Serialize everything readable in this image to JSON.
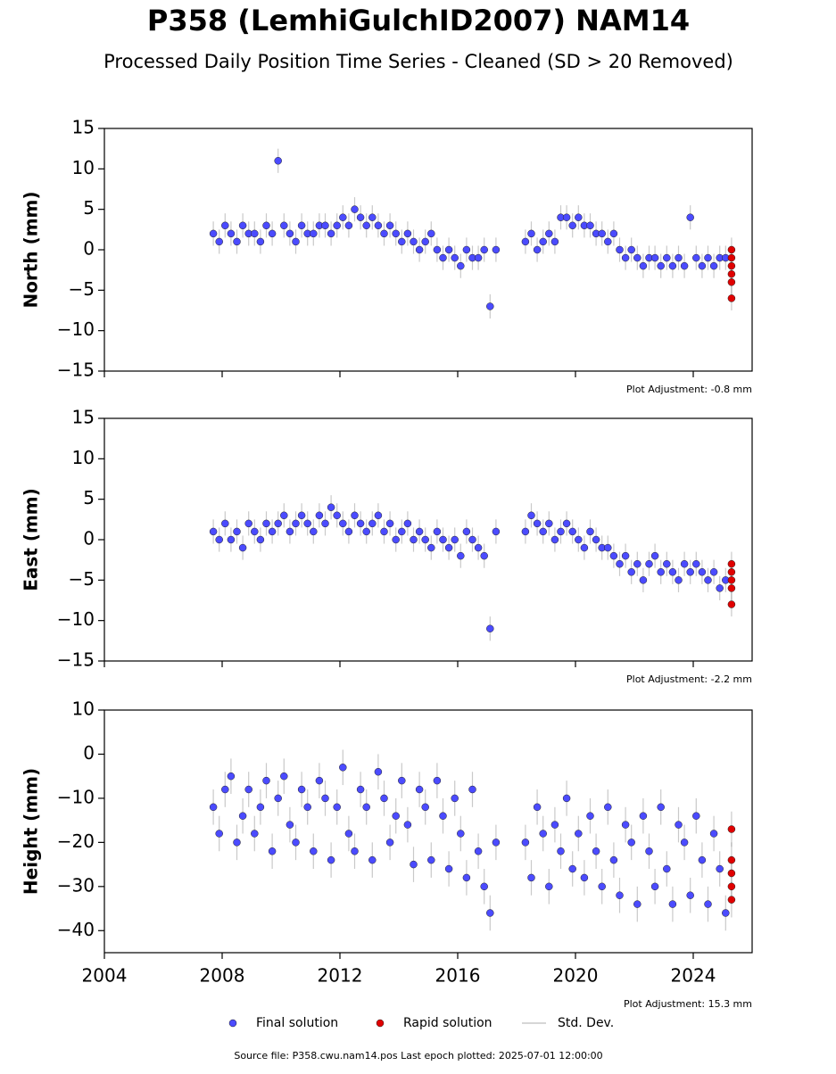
{
  "title": "P358 (LemhiGulchID2007) NAM14",
  "subtitle": "Processed Daily Position Time Series - Cleaned (SD > 20 Removed)",
  "std_dev_label": "Std. Dev.",
  "footer": "Source file: P358.cwu.nam14.pos  Last epoch plotted: 2025-07-01 12:00:00",
  "chart_data": [
    {
      "type": "scatter",
      "ylabel": "North (mm)",
      "annotation": "Plot Adjustment: -0.8 mm",
      "xlim": [
        2004,
        2026
      ],
      "xticks": [
        2004,
        2008,
        2012,
        2016,
        2020,
        2024
      ],
      "show_xtick_labels": false,
      "ylim": [
        -15,
        15
      ],
      "yticks": [
        {
          "value": -15,
          "label": "−15"
        },
        {
          "value": -10,
          "label": "−10"
        },
        {
          "value": -5,
          "label": "−5"
        },
        0,
        5,
        10,
        15
      ],
      "series": [
        {
          "name": "Final solution",
          "color": "#4b4bff",
          "std_dev": 1.5,
          "x": [
            2007.7,
            2007.9,
            2008.1,
            2008.3,
            2008.5,
            2008.7,
            2008.9,
            2009.1,
            2009.3,
            2009.5,
            2009.7,
            2009.9,
            2010.1,
            2010.3,
            2010.5,
            2010.7,
            2010.9,
            2011.1,
            2011.3,
            2011.5,
            2011.7,
            2011.9,
            2012.1,
            2012.3,
            2012.5,
            2012.7,
            2012.9,
            2013.1,
            2013.3,
            2013.5,
            2013.7,
            2013.9,
            2014.1,
            2014.3,
            2014.5,
            2014.7,
            2014.9,
            2015.1,
            2015.3,
            2015.5,
            2015.7,
            2015.9,
            2016.1,
            2016.3,
            2016.5,
            2016.7,
            2016.9,
            2017.1,
            2017.3,
            2018.3,
            2018.5,
            2018.7,
            2018.9,
            2019.1,
            2019.3,
            2019.5,
            2019.7,
            2019.9,
            2020.1,
            2020.3,
            2020.5,
            2020.7,
            2020.9,
            2021.1,
            2021.3,
            2021.5,
            2021.7,
            2021.9,
            2022.1,
            2022.3,
            2022.5,
            2022.7,
            2022.9,
            2023.1,
            2023.3,
            2023.5,
            2023.7,
            2023.9,
            2024.1,
            2024.3,
            2024.5,
            2024.7,
            2024.9,
            2025.1
          ],
          "values": [
            2,
            1,
            3,
            2,
            1,
            3,
            2,
            2,
            1,
            3,
            2,
            11,
            3,
            2,
            1,
            3,
            2,
            2,
            3,
            3,
            2,
            3,
            4,
            3,
            5,
            4,
            3,
            4,
            3,
            2,
            3,
            2,
            1,
            2,
            1,
            0,
            1,
            2,
            0,
            -1,
            0,
            -1,
            -2,
            0,
            -1,
            -1,
            0,
            -7,
            0,
            1,
            2,
            0,
            1,
            2,
            1,
            4,
            4,
            3,
            4,
            3,
            3,
            2,
            2,
            1,
            2,
            0,
            -1,
            0,
            -1,
            -2,
            -1,
            -1,
            -2,
            -1,
            -2,
            -1,
            -2,
            4,
            -1,
            -2,
            -1,
            -2,
            -1,
            -1
          ]
        },
        {
          "name": "Rapid solution",
          "color": "#e00000",
          "std_dev": 1.5,
          "x": [
            2025.3,
            2025.3,
            2025.3,
            2025.3,
            2025.3,
            2025.3
          ],
          "values": [
            0,
            -1,
            -2,
            -3,
            -4,
            -6
          ]
        }
      ]
    },
    {
      "type": "scatter",
      "ylabel": "East (mm)",
      "annotation": "Plot Adjustment: -2.2 mm",
      "xlim": [
        2004,
        2026
      ],
      "xticks": [
        2004,
        2008,
        2012,
        2016,
        2020,
        2024
      ],
      "show_xtick_labels": false,
      "ylim": [
        -15,
        15
      ],
      "yticks": [
        {
          "value": -15,
          "label": "−15"
        },
        {
          "value": -10,
          "label": "−10"
        },
        {
          "value": -5,
          "label": "−5"
        },
        0,
        5,
        10,
        15
      ],
      "series": [
        {
          "name": "Final solution",
          "color": "#4b4bff",
          "std_dev": 1.5,
          "x": [
            2007.7,
            2007.9,
            2008.1,
            2008.3,
            2008.5,
            2008.7,
            2008.9,
            2009.1,
            2009.3,
            2009.5,
            2009.7,
            2009.9,
            2010.1,
            2010.3,
            2010.5,
            2010.7,
            2010.9,
            2011.1,
            2011.3,
            2011.5,
            2011.7,
            2011.9,
            2012.1,
            2012.3,
            2012.5,
            2012.7,
            2012.9,
            2013.1,
            2013.3,
            2013.5,
            2013.7,
            2013.9,
            2014.1,
            2014.3,
            2014.5,
            2014.7,
            2014.9,
            2015.1,
            2015.3,
            2015.5,
            2015.7,
            2015.9,
            2016.1,
            2016.3,
            2016.5,
            2016.7,
            2016.9,
            2017.1,
            2017.3,
            2018.3,
            2018.5,
            2018.7,
            2018.9,
            2019.1,
            2019.3,
            2019.5,
            2019.7,
            2019.9,
            2020.1,
            2020.3,
            2020.5,
            2020.7,
            2020.9,
            2021.1,
            2021.3,
            2021.5,
            2021.7,
            2021.9,
            2022.1,
            2022.3,
            2022.5,
            2022.7,
            2022.9,
            2023.1,
            2023.3,
            2023.5,
            2023.7,
            2023.9,
            2024.1,
            2024.3,
            2024.5,
            2024.7,
            2024.9,
            2025.1
          ],
          "values": [
            1,
            0,
            2,
            0,
            1,
            -1,
            2,
            1,
            0,
            2,
            1,
            2,
            3,
            1,
            2,
            3,
            2,
            1,
            3,
            2,
            4,
            3,
            2,
            1,
            3,
            2,
            1,
            2,
            3,
            1,
            2,
            0,
            1,
            2,
            0,
            1,
            0,
            -1,
            1,
            0,
            -1,
            0,
            -2,
            1,
            0,
            -1,
            -2,
            -11,
            1,
            1,
            3,
            2,
            1,
            2,
            0,
            1,
            2,
            1,
            0,
            -1,
            1,
            0,
            -1,
            -1,
            -2,
            -3,
            -2,
            -4,
            -3,
            -5,
            -3,
            -2,
            -4,
            -3,
            -4,
            -5,
            -3,
            -4,
            -3,
            -4,
            -5,
            -4,
            -6,
            -5
          ]
        },
        {
          "name": "Rapid solution",
          "color": "#e00000",
          "std_dev": 1.5,
          "x": [
            2025.3,
            2025.3,
            2025.3,
            2025.3,
            2025.3
          ],
          "values": [
            -3,
            -4,
            -5,
            -6,
            -8
          ]
        }
      ]
    },
    {
      "type": "scatter",
      "ylabel": "Height (mm)",
      "annotation": "Plot Adjustment: 15.3 mm",
      "xlim": [
        2004,
        2026
      ],
      "xticks": [
        2004,
        2008,
        2012,
        2016,
        2020,
        2024
      ],
      "show_xtick_labels": true,
      "ylim": [
        -45,
        10
      ],
      "yticks": [
        {
          "value": -40,
          "label": "−40"
        },
        {
          "value": -30,
          "label": "−30"
        },
        {
          "value": -20,
          "label": "−20"
        },
        {
          "value": -10,
          "label": "−10"
        },
        0,
        10
      ],
      "series": [
        {
          "name": "Final solution",
          "color": "#4b4bff",
          "std_dev": 4,
          "x": [
            2007.7,
            2007.9,
            2008.1,
            2008.3,
            2008.5,
            2008.7,
            2008.9,
            2009.1,
            2009.3,
            2009.5,
            2009.7,
            2009.9,
            2010.1,
            2010.3,
            2010.5,
            2010.7,
            2010.9,
            2011.1,
            2011.3,
            2011.5,
            2011.7,
            2011.9,
            2012.1,
            2012.3,
            2012.5,
            2012.7,
            2012.9,
            2013.1,
            2013.3,
            2013.5,
            2013.7,
            2013.9,
            2014.1,
            2014.3,
            2014.5,
            2014.7,
            2014.9,
            2015.1,
            2015.3,
            2015.5,
            2015.7,
            2015.9,
            2016.1,
            2016.3,
            2016.5,
            2016.7,
            2016.9,
            2017.1,
            2017.3,
            2018.3,
            2018.5,
            2018.7,
            2018.9,
            2019.1,
            2019.3,
            2019.5,
            2019.7,
            2019.9,
            2020.1,
            2020.3,
            2020.5,
            2020.7,
            2020.9,
            2021.1,
            2021.3,
            2021.5,
            2021.7,
            2021.9,
            2022.1,
            2022.3,
            2022.5,
            2022.7,
            2022.9,
            2023.1,
            2023.3,
            2023.5,
            2023.7,
            2023.9,
            2024.1,
            2024.3,
            2024.5,
            2024.7,
            2024.9,
            2025.1
          ],
          "values": [
            -12,
            -18,
            -8,
            -5,
            -20,
            -14,
            -8,
            -18,
            -12,
            -6,
            -22,
            -10,
            -5,
            -16,
            -20,
            -8,
            -12,
            -22,
            -6,
            -10,
            -24,
            -12,
            -3,
            -18,
            -22,
            -8,
            -12,
            -24,
            -4,
            -10,
            -20,
            -14,
            -6,
            -16,
            -25,
            -8,
            -12,
            -24,
            -6,
            -14,
            -26,
            -10,
            -18,
            -28,
            -8,
            -22,
            -30,
            -36,
            -20,
            -20,
            -28,
            -12,
            -18,
            -30,
            -16,
            -22,
            -10,
            -26,
            -18,
            -28,
            -14,
            -22,
            -30,
            -12,
            -24,
            -32,
            -16,
            -20,
            -34,
            -14,
            -22,
            -30,
            -12,
            -26,
            -34,
            -16,
            -20,
            -32,
            -14,
            -24,
            -34,
            -18,
            -26,
            -36
          ]
        },
        {
          "name": "Rapid solution",
          "color": "#e00000",
          "std_dev": 4,
          "x": [
            2025.3,
            2025.3,
            2025.3,
            2025.3,
            2025.3
          ],
          "values": [
            -17,
            -24,
            -27,
            -30,
            -33
          ]
        }
      ]
    }
  ]
}
